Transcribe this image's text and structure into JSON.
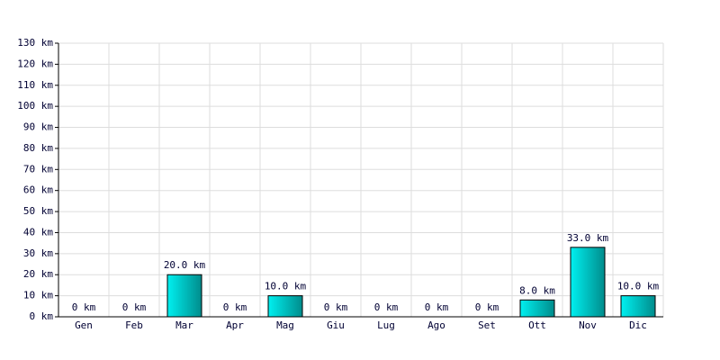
{
  "chart_data": {
    "type": "bar",
    "categories": [
      "Gen",
      "Feb",
      "Mar",
      "Apr",
      "Mag",
      "Giu",
      "Lug",
      "Ago",
      "Set",
      "Ott",
      "Nov",
      "Dic"
    ],
    "values": [
      0,
      0,
      20,
      0,
      10,
      0,
      0,
      0,
      0,
      8,
      33,
      10
    ],
    "value_labels": [
      "0 km",
      "0 km",
      "20.0 km",
      "0 km",
      "10.0 km",
      "0 km",
      "0 km",
      "0 km",
      "0 km",
      "8.0 km",
      "33.0 km",
      "10.0 km"
    ],
    "color": "#00cccc",
    "ylim": [
      0,
      130
    ],
    "yticks": [
      {
        "value": 0,
        "label": "0 km"
      },
      {
        "value": 10,
        "label": "10 km"
      },
      {
        "value": 20,
        "label": "20 km"
      },
      {
        "value": 30,
        "label": "30 km"
      },
      {
        "value": 40,
        "label": "40 km"
      },
      {
        "value": 50,
        "label": "50 km"
      },
      {
        "value": 60,
        "label": "60 km"
      },
      {
        "value": 70,
        "label": "70 km"
      },
      {
        "value": 80,
        "label": "80 km"
      },
      {
        "value": 90,
        "label": "90 km"
      },
      {
        "value": 100,
        "label": "100 km"
      },
      {
        "value": 110,
        "label": "110 km"
      },
      {
        "value": 120,
        "label": "120 km"
      },
      {
        "value": 130,
        "label": "130 km"
      }
    ],
    "grid": true
  }
}
